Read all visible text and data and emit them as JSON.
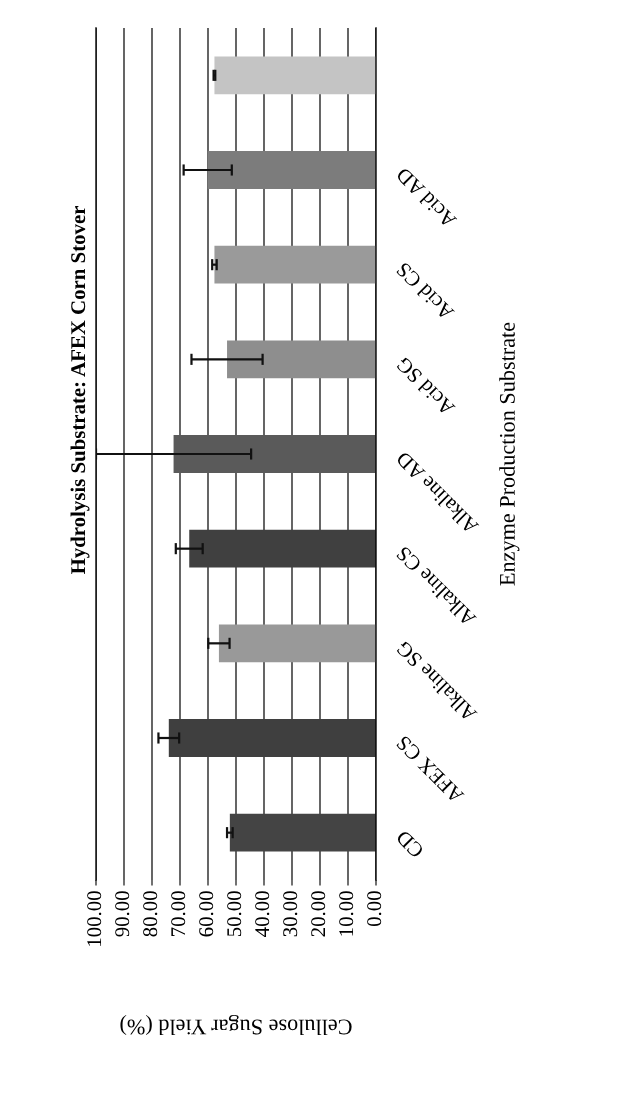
{
  "chart_data": {
    "type": "bar",
    "orientation": "horizontal",
    "title": "Hydrolysis Substrate: AFEX Corn Stover",
    "xlabel": "Cellulose Sugar Yield (%)",
    "ylabel": "Enzyme Production Substrate",
    "categories": [
      null,
      "Acid AD",
      "Acid CS",
      "Acid SG",
      "Alkaline AD",
      "Alkaline CS",
      "Alkaline SG",
      "AFEX CS",
      "CD"
    ],
    "values": [
      57.7,
      60.1,
      57.7,
      53.2,
      72.3,
      66.7,
      56.1,
      74.0,
      52.2
    ],
    "errors": [
      0.3,
      8.6,
      0.8,
      12.7,
      27.7,
      4.8,
      3.8,
      3.7,
      1.0
    ],
    "colors": [
      "#c4c4c4",
      "#7c7c7c",
      "#9a9a9a",
      "#8e8e8e",
      "#5a5a5a",
      "#404040",
      "#999999",
      "#3f3f3f",
      "#444444"
    ],
    "xlim": [
      100,
      0
    ],
    "xticks": [
      {
        "value": 100,
        "label": "100.00"
      },
      {
        "value": 90,
        "label": "90.00"
      },
      {
        "value": 80,
        "label": "80.00"
      },
      {
        "value": 70,
        "label": "70.00"
      },
      {
        "value": 60,
        "label": "60.00"
      },
      {
        "value": 50,
        "label": "50.00"
      },
      {
        "value": 40,
        "label": "40.00"
      },
      {
        "value": 30,
        "label": "30.00"
      },
      {
        "value": 20,
        "label": "20.00"
      },
      {
        "value": 10,
        "label": "10.00"
      },
      {
        "value": 0,
        "label": "0.00"
      }
    ],
    "grid": "x"
  }
}
